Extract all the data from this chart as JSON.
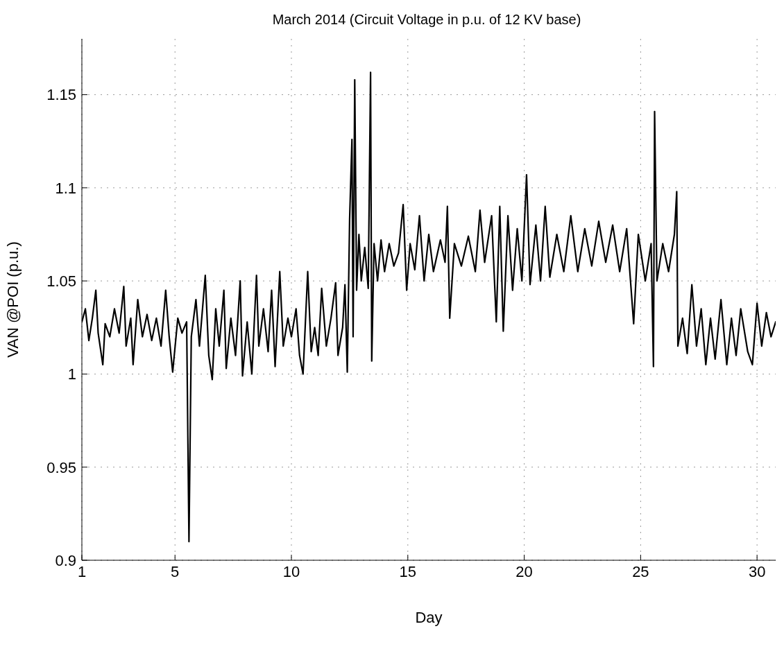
{
  "chart_data": {
    "type": "line",
    "title": "March 2014 (Circuit Voltage in p.u. of 12 KV base)",
    "xlabel": "Day",
    "ylabel": "VAN @POI (p.u.)",
    "x": [
      1.0,
      1.15,
      1.3,
      1.45,
      1.6,
      1.7,
      1.9,
      2.0,
      2.2,
      2.4,
      2.6,
      2.8,
      2.9,
      3.1,
      3.2,
      3.4,
      3.6,
      3.8,
      4.0,
      4.2,
      4.4,
      4.6,
      4.75,
      4.9,
      5.12,
      5.3,
      5.5,
      5.6,
      5.7,
      5.9,
      6.05,
      6.3,
      6.45,
      6.6,
      6.75,
      6.9,
      7.1,
      7.2,
      7.4,
      7.6,
      7.8,
      7.9,
      8.1,
      8.3,
      8.5,
      8.6,
      8.8,
      9.0,
      9.15,
      9.3,
      9.5,
      9.65,
      9.85,
      10.0,
      10.2,
      10.35,
      10.5,
      10.7,
      10.85,
      11.0,
      11.15,
      11.3,
      11.5,
      11.7,
      11.9,
      12.0,
      12.2,
      12.3,
      12.4,
      12.5,
      12.6,
      12.65,
      12.72,
      12.8,
      12.9,
      13.0,
      13.15,
      13.3,
      13.4,
      13.45,
      13.55,
      13.7,
      13.85,
      14.0,
      14.2,
      14.4,
      14.6,
      14.8,
      14.95,
      15.1,
      15.3,
      15.5,
      15.7,
      15.9,
      16.1,
      16.4,
      16.6,
      16.7,
      16.8,
      17.0,
      17.3,
      17.6,
      17.9,
      18.1,
      18.3,
      18.6,
      18.8,
      18.95,
      19.1,
      19.3,
      19.5,
      19.7,
      19.9,
      20.1,
      20.25,
      20.5,
      20.7,
      20.9,
      21.1,
      21.4,
      21.7,
      22.0,
      22.3,
      22.6,
      22.9,
      23.2,
      23.5,
      23.8,
      24.1,
      24.4,
      24.7,
      24.9,
      25.2,
      25.45,
      25.55,
      25.6,
      25.7,
      25.95,
      26.2,
      26.45,
      26.55,
      26.6,
      26.8,
      27.0,
      27.2,
      27.4,
      27.6,
      27.8,
      28.0,
      28.2,
      28.45,
      28.7,
      28.9,
      29.1,
      29.3,
      29.6,
      29.8,
      30.0,
      30.2,
      30.4,
      30.6,
      30.8
    ],
    "series": [
      {
        "color": "#000000",
        "values": [
          1.028,
          1.035,
          1.018,
          1.03,
          1.045,
          1.022,
          1.005,
          1.027,
          1.02,
          1.035,
          1.022,
          1.047,
          1.015,
          1.03,
          1.005,
          1.04,
          1.02,
          1.032,
          1.018,
          1.03,
          1.015,
          1.045,
          1.02,
          1.001,
          1.03,
          1.022,
          1.028,
          0.91,
          1.02,
          1.04,
          1.015,
          1.053,
          1.01,
          0.997,
          1.035,
          1.015,
          1.045,
          1.003,
          1.03,
          1.01,
          1.05,
          0.999,
          1.028,
          1.0,
          1.053,
          1.015,
          1.035,
          1.012,
          1.045,
          1.004,
          1.055,
          1.015,
          1.03,
          1.02,
          1.035,
          1.01,
          1.0,
          1.055,
          1.012,
          1.025,
          1.01,
          1.046,
          1.015,
          1.03,
          1.049,
          1.01,
          1.025,
          1.048,
          1.001,
          1.083,
          1.126,
          1.02,
          1.158,
          1.045,
          1.075,
          1.05,
          1.068,
          1.046,
          1.162,
          1.007,
          1.07,
          1.05,
          1.072,
          1.055,
          1.07,
          1.058,
          1.065,
          1.091,
          1.045,
          1.07,
          1.056,
          1.085,
          1.05,
          1.075,
          1.055,
          1.072,
          1.06,
          1.09,
          1.03,
          1.07,
          1.058,
          1.074,
          1.055,
          1.088,
          1.06,
          1.085,
          1.028,
          1.09,
          1.023,
          1.085,
          1.045,
          1.078,
          1.05,
          1.107,
          1.048,
          1.08,
          1.05,
          1.09,
          1.052,
          1.075,
          1.055,
          1.085,
          1.055,
          1.078,
          1.058,
          1.082,
          1.06,
          1.08,
          1.055,
          1.078,
          1.027,
          1.075,
          1.05,
          1.07,
          1.004,
          1.141,
          1.05,
          1.07,
          1.055,
          1.075,
          1.098,
          1.015,
          1.03,
          1.011,
          1.048,
          1.015,
          1.035,
          1.005,
          1.03,
          1.008,
          1.04,
          1.005,
          1.03,
          1.01,
          1.035,
          1.012,
          1.005,
          1.038,
          1.015,
          1.033,
          1.02,
          1.028
        ]
      }
    ],
    "xlim": [
      1,
      30.8
    ],
    "xticks": [
      1,
      5,
      10,
      15,
      20,
      25,
      30
    ],
    "ylim": [
      0.9,
      1.18
    ],
    "yticks": [
      0.9,
      0.95,
      1,
      1.05,
      1.1,
      1.15
    ],
    "grid": true,
    "legend": false,
    "marker": "none",
    "line_style": "solid"
  }
}
